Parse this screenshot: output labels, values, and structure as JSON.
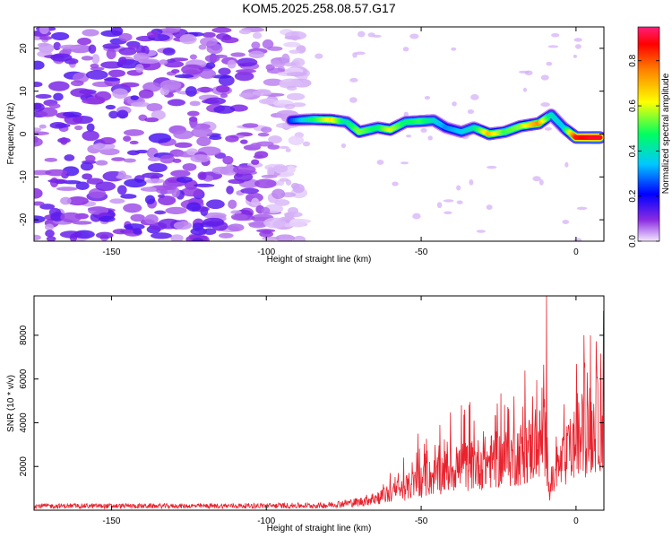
{
  "title": "KOM5.2025.258.08.57.G17",
  "colors": {
    "snr_line": "#e8232e",
    "axis": "#000000"
  },
  "chart_data": [
    {
      "type": "heatmap",
      "xlabel": "Height of straight line (km)",
      "ylabel": "Frequency (Hz)",
      "xlim": [
        -175,
        9
      ],
      "ylim": [
        -25,
        25
      ],
      "x_ticks": [
        "-150",
        "-100",
        "-50",
        "0"
      ],
      "x_tick_values": [
        -150,
        -100,
        -50,
        0
      ],
      "y_ticks": [
        "20",
        "10",
        "0",
        "-10",
        "-20"
      ],
      "y_tick_values": [
        20,
        10,
        0,
        -10,
        -20
      ],
      "colorbar": {
        "label": "Normalized spectral amplitude",
        "range": [
          0,
          0.95
        ],
        "ticks": [
          "0.0",
          "0.2",
          "0.4",
          "0.6",
          "0.8"
        ],
        "tick_values": [
          0,
          0.2,
          0.4,
          0.6,
          0.8
        ]
      },
      "ridge": [
        {
          "x": -92,
          "y": 3.2,
          "amp": 0.25
        },
        {
          "x": -85,
          "y": 3.4,
          "amp": 0.45
        },
        {
          "x": -79,
          "y": 3.3,
          "amp": 0.65
        },
        {
          "x": -74,
          "y": 2.8,
          "amp": 0.4
        },
        {
          "x": -70,
          "y": 0.5,
          "amp": 0.55
        },
        {
          "x": -64,
          "y": 1.5,
          "amp": 0.45
        },
        {
          "x": -60,
          "y": 1.0,
          "amp": 0.6
        },
        {
          "x": -55,
          "y": 2.8,
          "amp": 0.45
        },
        {
          "x": -50,
          "y": 3.0,
          "amp": 0.5
        },
        {
          "x": -46,
          "y": 3.2,
          "amp": 0.4
        },
        {
          "x": -42,
          "y": 1.5,
          "amp": 0.3
        },
        {
          "x": -37,
          "y": 0.5,
          "amp": 0.35
        },
        {
          "x": -33,
          "y": 1.5,
          "amp": 0.4
        },
        {
          "x": -28,
          "y": 0.0,
          "amp": 0.7
        },
        {
          "x": -23,
          "y": 0.5,
          "amp": 0.5
        },
        {
          "x": -18,
          "y": 1.8,
          "amp": 0.55
        },
        {
          "x": -12,
          "y": 2.5,
          "amp": 0.75
        },
        {
          "x": -8,
          "y": 4.5,
          "amp": 0.4
        },
        {
          "x": -4,
          "y": 1.5,
          "amp": 0.35
        },
        {
          "x": 0,
          "y": -0.8,
          "amp": 0.85
        },
        {
          "x": 5,
          "y": -0.8,
          "amp": 0.9
        },
        {
          "x": 8,
          "y": -0.8,
          "amp": 0.9
        }
      ]
    },
    {
      "type": "line",
      "xlabel": "Height of straight line (km)",
      "ylabel": "SNR (10 * v/v)",
      "xlim": [
        -175,
        9
      ],
      "ylim": [
        0,
        9800
      ],
      "x_ticks": [
        "-150",
        "-100",
        "-50",
        "0"
      ],
      "x_tick_values": [
        -150,
        -100,
        -50,
        0
      ],
      "y_ticks": [
        "2000",
        "4000",
        "6000",
        "8000"
      ],
      "y_tick_values": [
        2000,
        4000,
        6000,
        8000
      ],
      "envelope": [
        {
          "x": -175,
          "y": 250
        },
        {
          "x": -120,
          "y": 250
        },
        {
          "x": -80,
          "y": 300
        },
        {
          "x": -70,
          "y": 450
        },
        {
          "x": -60,
          "y": 900
        },
        {
          "x": -50,
          "y": 1600
        },
        {
          "x": -40,
          "y": 2300
        },
        {
          "x": -30,
          "y": 2600
        },
        {
          "x": -20,
          "y": 3000
        },
        {
          "x": -12,
          "y": 3600
        },
        {
          "x": -10,
          "y": 4000
        },
        {
          "x": -8.5,
          "y": 1200
        },
        {
          "x": -5,
          "y": 2500
        },
        {
          "x": 0,
          "y": 3800
        },
        {
          "x": 5,
          "y": 4500
        },
        {
          "x": 9,
          "y": 5000
        }
      ],
      "peaks": [
        {
          "x": -9.5,
          "y": 9800
        },
        {
          "x": -11,
          "y": 5600
        },
        {
          "x": 7,
          "y": 5800
        },
        {
          "x": -20,
          "y": 5200
        },
        {
          "x": -36,
          "y": 4600
        },
        {
          "x": -51,
          "y": 3500
        },
        {
          "x": -26,
          "y": 4300
        },
        {
          "x": -44,
          "y": 3900
        },
        {
          "x": -37,
          "y": 4800
        },
        {
          "x": -14,
          "y": 5200
        }
      ]
    }
  ]
}
